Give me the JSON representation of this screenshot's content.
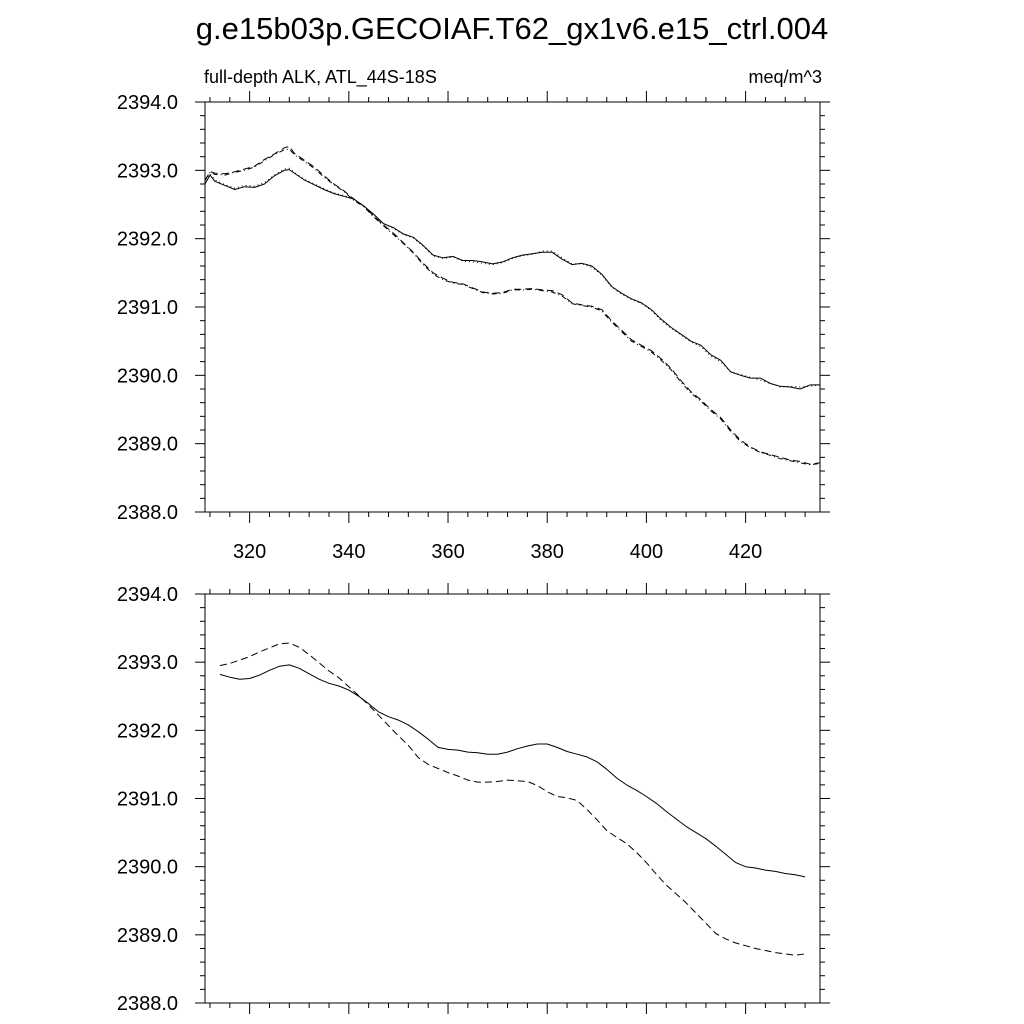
{
  "figure": {
    "title": "g.e15b03p.GECOIAF.T62_gx1v6.e15_ctrl.004"
  },
  "chart_data": [
    {
      "type": "line",
      "left_label": "full-depth ALK, ATL_44S-18S",
      "right_label": "meq/m^3",
      "xlim": [
        311,
        435
      ],
      "ylim": [
        2388.0,
        2394.0
      ],
      "xticks": [
        320,
        340,
        360,
        380,
        400,
        420
      ],
      "xtick_labels": [
        "320",
        "340",
        "360",
        "380",
        "400",
        "420"
      ],
      "yticks": [
        2388.0,
        2389.0,
        2390.0,
        2391.0,
        2392.0,
        2393.0,
        2394.0
      ],
      "ytick_labels": [
        "2388.0",
        "2389.0",
        "2390.0",
        "2391.0",
        "2392.0",
        "2393.0",
        "2394.0"
      ],
      "series": [
        {
          "name": "solid",
          "dash": "solid",
          "color": "#000000",
          "x": [
            311,
            312,
            313,
            315,
            317,
            319,
            321,
            323,
            325,
            327,
            328,
            329,
            331,
            333,
            335,
            337,
            339,
            341,
            343,
            345,
            347,
            349,
            351,
            353,
            355,
            357,
            359,
            361,
            363,
            365,
            367,
            369,
            371,
            373,
            375,
            377,
            379,
            381,
            383,
            385,
            387,
            389,
            391,
            393,
            395,
            397,
            399,
            401,
            403,
            405,
            407,
            409,
            411,
            413,
            415,
            417,
            419,
            421,
            423,
            425,
            427,
            429,
            431,
            433,
            435
          ],
          "y": [
            2392.8,
            2392.93,
            2392.84,
            2392.78,
            2392.72,
            2392.76,
            2392.75,
            2392.8,
            2392.92,
            2393.0,
            2393.01,
            2392.96,
            2392.86,
            2392.79,
            2392.72,
            2392.66,
            2392.62,
            2392.58,
            2392.48,
            2392.36,
            2392.22,
            2392.16,
            2392.07,
            2392.02,
            2391.9,
            2391.76,
            2391.72,
            2391.74,
            2391.68,
            2391.68,
            2391.66,
            2391.63,
            2391.66,
            2391.72,
            2391.76,
            2391.78,
            2391.8,
            2391.8,
            2391.7,
            2391.62,
            2391.64,
            2391.6,
            2391.48,
            2391.3,
            2391.2,
            2391.12,
            2391.06,
            2390.96,
            2390.82,
            2390.7,
            2390.6,
            2390.5,
            2390.44,
            2390.3,
            2390.22,
            2390.05,
            2390.0,
            2389.96,
            2389.96,
            2389.88,
            2389.84,
            2389.83,
            2389.8,
            2389.86,
            2389.86
          ]
        },
        {
          "name": "dotted",
          "dash": "1 3",
          "color": "#000000",
          "x": [
            311,
            312,
            313,
            315,
            317,
            319,
            321,
            323,
            325,
            327,
            328,
            329,
            331,
            333,
            335,
            337,
            339,
            341,
            343,
            345,
            347,
            349,
            351,
            353,
            355,
            357,
            359,
            361,
            363,
            365,
            367,
            369,
            371,
            373,
            375,
            377,
            379,
            381,
            383,
            385,
            387,
            389,
            391,
            393,
            395,
            397,
            399,
            401,
            403,
            405,
            407,
            409,
            411,
            413,
            415,
            417,
            419,
            421,
            423,
            425,
            427,
            429,
            431,
            433,
            435
          ],
          "y": [
            2392.8,
            2392.95,
            2392.86,
            2392.79,
            2392.74,
            2392.78,
            2392.77,
            2392.82,
            2392.93,
            2393.02,
            2393.03,
            2392.97,
            2392.87,
            2392.8,
            2392.73,
            2392.67,
            2392.63,
            2392.57,
            2392.47,
            2392.35,
            2392.22,
            2392.15,
            2392.06,
            2392.01,
            2391.89,
            2391.75,
            2391.71,
            2391.73,
            2391.67,
            2391.66,
            2391.64,
            2391.62,
            2391.65,
            2391.71,
            2391.75,
            2391.77,
            2391.82,
            2391.82,
            2391.72,
            2391.63,
            2391.63,
            2391.58,
            2391.47,
            2391.29,
            2391.19,
            2391.11,
            2391.05,
            2390.95,
            2390.8,
            2390.69,
            2390.59,
            2390.49,
            2390.42,
            2390.28,
            2390.2,
            2390.05,
            2390.01,
            2389.97,
            2389.93,
            2389.88,
            2389.83,
            2389.84,
            2389.83,
            2389.84,
            2389.86
          ]
        },
        {
          "name": "dashed",
          "dash": "7 4",
          "color": "#000000",
          "x": [
            311,
            312,
            313,
            315,
            317,
            319,
            321,
            323,
            325,
            327,
            328,
            329,
            331,
            333,
            335,
            337,
            339,
            341,
            343,
            345,
            347,
            349,
            351,
            353,
            355,
            357,
            359,
            361,
            363,
            365,
            367,
            369,
            371,
            373,
            375,
            377,
            379,
            381,
            383,
            385,
            387,
            389,
            391,
            393,
            395,
            397,
            399,
            401,
            403,
            405,
            407,
            409,
            411,
            413,
            415,
            417,
            419,
            421,
            423,
            425,
            427,
            429,
            431,
            433,
            435
          ],
          "y": [
            2392.85,
            2392.98,
            2392.96,
            2392.95,
            2392.98,
            2393.02,
            2393.06,
            2393.16,
            2393.24,
            2393.33,
            2393.35,
            2393.25,
            2393.15,
            2393.05,
            2392.92,
            2392.8,
            2392.7,
            2392.58,
            2392.48,
            2392.33,
            2392.2,
            2392.08,
            2391.94,
            2391.8,
            2391.64,
            2391.5,
            2391.42,
            2391.36,
            2391.34,
            2391.28,
            2391.22,
            2391.2,
            2391.21,
            2391.26,
            2391.26,
            2391.27,
            2391.25,
            2391.24,
            2391.18,
            2391.06,
            2391.03,
            2391.01,
            2390.96,
            2390.8,
            2390.66,
            2390.52,
            2390.44,
            2390.36,
            2390.24,
            2390.1,
            2389.92,
            2389.76,
            2389.64,
            2389.5,
            2389.38,
            2389.2,
            2389.05,
            2388.95,
            2388.88,
            2388.84,
            2388.8,
            2388.76,
            2388.74,
            2388.7,
            2388.72
          ]
        },
        {
          "name": "dash-dot",
          "dash": "5 3 1 3",
          "color": "#000000",
          "x": [
            311,
            312,
            313,
            315,
            317,
            319,
            321,
            323,
            325,
            327,
            328,
            329,
            331,
            333,
            335,
            337,
            339,
            341,
            343,
            345,
            347,
            349,
            351,
            353,
            355,
            357,
            359,
            361,
            363,
            365,
            367,
            369,
            371,
            373,
            375,
            377,
            379,
            381,
            383,
            385,
            387,
            389,
            391,
            393,
            395,
            397,
            399,
            401,
            403,
            405,
            407,
            409,
            411,
            413,
            415,
            417,
            419,
            421,
            423,
            425,
            427,
            429,
            431,
            433,
            435
          ],
          "y": [
            2392.86,
            2392.97,
            2392.94,
            2392.93,
            2392.97,
            2393.0,
            2393.05,
            2393.14,
            2393.23,
            2393.3,
            2393.31,
            2393.23,
            2393.13,
            2393.03,
            2392.9,
            2392.79,
            2392.69,
            2392.56,
            2392.47,
            2392.32,
            2392.19,
            2392.06,
            2391.93,
            2391.79,
            2391.62,
            2391.48,
            2391.4,
            2391.35,
            2391.33,
            2391.27,
            2391.21,
            2391.19,
            2391.2,
            2391.25,
            2391.25,
            2391.26,
            2391.24,
            2391.22,
            2391.16,
            2391.05,
            2391.02,
            2391.0,
            2390.94,
            2390.78,
            2390.64,
            2390.5,
            2390.42,
            2390.34,
            2390.22,
            2390.08,
            2389.9,
            2389.74,
            2389.62,
            2389.48,
            2389.36,
            2389.18,
            2389.03,
            2388.94,
            2388.87,
            2388.83,
            2388.78,
            2388.75,
            2388.72,
            2388.69,
            2388.71
          ]
        }
      ]
    },
    {
      "type": "line",
      "xlim": [
        311,
        435
      ],
      "ylim": [
        2388.0,
        2394.0
      ],
      "xticks": [
        320,
        340,
        360,
        380,
        400,
        420
      ],
      "yticks": [
        2388.0,
        2389.0,
        2390.0,
        2391.0,
        2392.0,
        2393.0,
        2394.0
      ],
      "ytick_labels": [
        "2388.0",
        "2389.0",
        "2390.0",
        "2391.0",
        "2392.0",
        "2393.0",
        "2394.0"
      ],
      "series": [
        {
          "name": "solid",
          "dash": "solid",
          "color": "#000000",
          "x": [
            314,
            316,
            318,
            320,
            322,
            324,
            326,
            328,
            330,
            332,
            334,
            336,
            338,
            340,
            342,
            344,
            346,
            348,
            350,
            352,
            354,
            356,
            358,
            360,
            362,
            364,
            366,
            368,
            370,
            372,
            374,
            376,
            378,
            380,
            382,
            384,
            386,
            388,
            390,
            392,
            394,
            396,
            398,
            400,
            402,
            404,
            406,
            408,
            410,
            412,
            414,
            416,
            418,
            420,
            422,
            424,
            426,
            428,
            430,
            432
          ],
          "y": [
            2392.82,
            2392.78,
            2392.75,
            2392.76,
            2392.81,
            2392.88,
            2392.94,
            2392.96,
            2392.91,
            2392.83,
            2392.75,
            2392.69,
            2392.65,
            2392.59,
            2392.5,
            2392.39,
            2392.27,
            2392.2,
            2392.15,
            2392.08,
            2391.98,
            2391.87,
            2391.75,
            2391.72,
            2391.71,
            2391.68,
            2391.67,
            2391.65,
            2391.65,
            2391.68,
            2391.73,
            2391.77,
            2391.8,
            2391.8,
            2391.75,
            2391.69,
            2391.65,
            2391.61,
            2391.54,
            2391.43,
            2391.3,
            2391.2,
            2391.12,
            2391.03,
            2390.93,
            2390.81,
            2390.7,
            2390.59,
            2390.5,
            2390.41,
            2390.3,
            2390.18,
            2390.06,
            2390.0,
            2389.98,
            2389.95,
            2389.93,
            2389.9,
            2389.88,
            2389.85
          ]
        },
        {
          "name": "dashed",
          "dash": "7 4",
          "color": "#000000",
          "x": [
            314,
            316,
            318,
            320,
            322,
            324,
            326,
            328,
            330,
            332,
            334,
            336,
            338,
            340,
            342,
            344,
            346,
            348,
            350,
            352,
            354,
            356,
            358,
            360,
            362,
            364,
            366,
            368,
            370,
            372,
            374,
            376,
            378,
            380,
            382,
            384,
            386,
            388,
            390,
            392,
            394,
            396,
            398,
            400,
            402,
            404,
            406,
            408,
            410,
            412,
            414,
            416,
            418,
            420,
            422,
            424,
            426,
            428,
            430,
            432
          ],
          "y": [
            2392.95,
            2392.98,
            2393.03,
            2393.08,
            2393.15,
            2393.21,
            2393.27,
            2393.28,
            2393.22,
            2393.11,
            2392.99,
            2392.87,
            2392.77,
            2392.64,
            2392.51,
            2392.37,
            2392.22,
            2392.07,
            2391.92,
            2391.78,
            2391.6,
            2391.5,
            2391.44,
            2391.38,
            2391.33,
            2391.27,
            2391.24,
            2391.24,
            2391.25,
            2391.27,
            2391.26,
            2391.25,
            2391.19,
            2391.1,
            2391.03,
            2391.01,
            2390.97,
            2390.84,
            2390.69,
            2390.53,
            2390.43,
            2390.34,
            2390.21,
            2390.06,
            2389.89,
            2389.73,
            2389.6,
            2389.47,
            2389.32,
            2389.17,
            2389.02,
            2388.94,
            2388.88,
            2388.84,
            2388.8,
            2388.77,
            2388.74,
            2388.72,
            2388.7,
            2388.72
          ]
        }
      ]
    }
  ]
}
